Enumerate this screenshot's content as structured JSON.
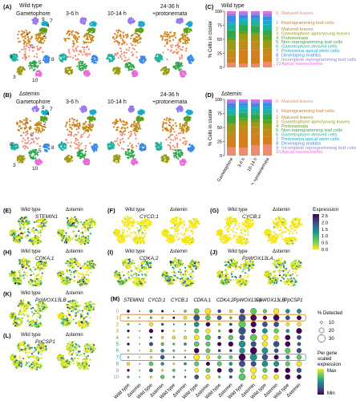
{
  "panel_A": {
    "letter": "(A)",
    "title": "Wild type",
    "stages": [
      "Gametophore",
      "3-6 h",
      "10-14 h",
      "24-36 h\n+protonemata"
    ],
    "cluster_ids": [
      "0",
      "1",
      "2",
      "3",
      "4",
      "5",
      "6",
      "7",
      "8",
      "9",
      "10"
    ]
  },
  "panel_B": {
    "letter": "(B)",
    "title": "Δstemin",
    "stages": [
      "Gametophore",
      "3-6 h",
      "10-14 h",
      "24-36 h\n+protonemata"
    ],
    "cluster_ids": [
      "0",
      "1",
      "2",
      "3",
      "4",
      "5",
      "6",
      "7",
      "8",
      "9",
      "10"
    ]
  },
  "panel_C": {
    "letter": "(C)",
    "title": "Wild type"
  },
  "panel_D": {
    "letter": "(D)",
    "title": "Δstemin"
  },
  "legend_clusters": [
    {
      "id": "0",
      "label": "Matured leaves",
      "color": "#f08a6e"
    },
    {
      "id": "1",
      "label": "Reprogramming leaf cells",
      "color": "#d4801a"
    },
    {
      "id": "2",
      "label": "Matured leaves",
      "color": "#c28a1a"
    },
    {
      "id": "3",
      "label": "Gametophore apex/young leaves",
      "color": "#9a9a14"
    },
    {
      "id": "4",
      "label": "Protonemata",
      "color": "#5aa01e"
    },
    {
      "id": "5",
      "label": "Non-reprogramming leaf cells",
      "color": "#2ea84a"
    },
    {
      "id": "6",
      "label": "Gametophore-derived cells",
      "color": "#20b0a0"
    },
    {
      "id": "7",
      "label": "Protonema apical stem cells",
      "color": "#18aacc"
    },
    {
      "id": "8",
      "label": "Developing midribs",
      "color": "#3a8ae8"
    },
    {
      "id": "9",
      "label": "Incomplete reprogramming leaf cells",
      "color": "#9a7ae8"
    },
    {
      "id": "10",
      "label": "Apical leaves/stems",
      "color": "#e86ad8"
    }
  ],
  "chart_data": [
    {
      "type": "bar",
      "title": "Wild type",
      "ylabel": "% Cells in cluster",
      "ylim": [
        0,
        100
      ],
      "categories": [
        "Gametophore",
        "3-6 h",
        "10-14 h",
        "24-36 h +protonemata"
      ],
      "stacked": true,
      "series": [
        {
          "name": "0",
          "values": [
            8,
            6,
            6,
            10
          ]
        },
        {
          "name": "1",
          "values": [
            8,
            25,
            25,
            12
          ]
        },
        {
          "name": "2",
          "values": [
            15,
            17,
            16,
            12
          ]
        },
        {
          "name": "3",
          "values": [
            17,
            12,
            12,
            14
          ]
        },
        {
          "name": "4",
          "values": [
            4,
            3,
            3,
            9
          ]
        },
        {
          "name": "5",
          "values": [
            14,
            12,
            12,
            10
          ]
        },
        {
          "name": "6",
          "values": [
            11,
            8,
            8,
            9
          ]
        },
        {
          "name": "7",
          "values": [
            4,
            3,
            4,
            8
          ]
        },
        {
          "name": "8",
          "values": [
            11,
            7,
            7,
            7
          ]
        },
        {
          "name": "9",
          "values": [
            4,
            4,
            4,
            5
          ]
        },
        {
          "name": "10",
          "values": [
            4,
            3,
            3,
            4
          ]
        }
      ]
    },
    {
      "type": "bar",
      "title": "Δstemin",
      "ylabel": "% Cells in cluster",
      "ylim": [
        0,
        100
      ],
      "categories": [
        "Gametophore",
        "3-6 h",
        "10-14 h",
        "24-36 h +protonemata"
      ],
      "stacked": true,
      "series": [
        {
          "name": "0",
          "values": [
            15,
            14,
            18,
            20
          ]
        },
        {
          "name": "1",
          "values": [
            15,
            26,
            20,
            14
          ]
        },
        {
          "name": "2",
          "values": [
            12,
            12,
            13,
            12
          ]
        },
        {
          "name": "3",
          "values": [
            14,
            10,
            9,
            10
          ]
        },
        {
          "name": "4",
          "values": [
            4,
            4,
            4,
            8
          ]
        },
        {
          "name": "5",
          "values": [
            12,
            10,
            10,
            10
          ]
        },
        {
          "name": "6",
          "values": [
            9,
            8,
            9,
            8
          ]
        },
        {
          "name": "7",
          "values": [
            4,
            4,
            4,
            6
          ]
        },
        {
          "name": "8",
          "values": [
            8,
            6,
            6,
            6
          ]
        },
        {
          "name": "9",
          "values": [
            4,
            4,
            4,
            4
          ]
        },
        {
          "name": "10",
          "values": [
            3,
            2,
            3,
            2
          ]
        }
      ]
    }
  ],
  "feature_panels": [
    {
      "letter": "(E)",
      "gene": "STEMIN1",
      "left": "Wild type",
      "right": "Δstemin"
    },
    {
      "letter": "(F)",
      "gene": "CYCD;1",
      "left": "Wild type",
      "right": "Δstemin"
    },
    {
      "letter": "(G)",
      "gene": "CYCB;1",
      "left": "Wild type",
      "right": "Δstemin"
    },
    {
      "letter": "(H)",
      "gene": "CDKA;1",
      "left": "Wild type",
      "right": "Δstemin"
    },
    {
      "letter": "(I)",
      "gene": "CDKA;2",
      "left": "Wild type",
      "right": "Δstemin"
    },
    {
      "letter": "(J)",
      "gene": "PpWOX13LA",
      "left": "Wild type",
      "right": "Δstemin"
    },
    {
      "letter": "(K)",
      "gene": "PpWOX13LB",
      "left": "Wild type",
      "right": "Δstemin"
    },
    {
      "letter": "(L)",
      "gene": "PpCSP1",
      "left": "Wild type",
      "right": "Δstemin"
    }
  ],
  "expression_legend": {
    "title": "Expression",
    "ticks": [
      "2.5",
      "2.0",
      "1.5",
      "1.0",
      "0.5",
      "0.0"
    ]
  },
  "panel_M": {
    "letter": "(M)",
    "genes": [
      "STEMIN1",
      "CYCD;1",
      "CYCB;1",
      "CDKA;1",
      "CDKA;2",
      "PpWOX13LA",
      "PpWOX13LB",
      "PpCSP1"
    ],
    "conditions": [
      "Wild type",
      "Δstemin"
    ],
    "rows": [
      "0",
      "1",
      "2",
      "3",
      "4",
      "5",
      "6",
      "7",
      "8",
      "9",
      "10"
    ],
    "pct_legend": {
      "title": "% Detected",
      "values": [
        "10",
        "20",
        "30"
      ]
    },
    "scale_legend": {
      "title": "Per gene\nscaled\nexpression",
      "max": "Max",
      "min": "Min"
    }
  }
}
